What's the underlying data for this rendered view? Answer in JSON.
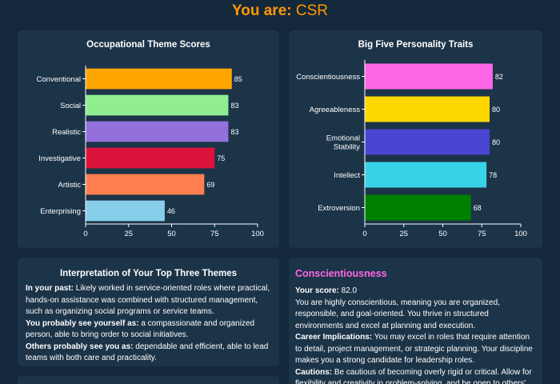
{
  "header": {
    "prefix": "You are:",
    "role": "CSR"
  },
  "theme_card": {
    "title": "Occupational Theme Scores"
  },
  "traits_card": {
    "title": "Big Five Personality Traits"
  },
  "chart_data": [
    {
      "type": "bar",
      "orientation": "horizontal",
      "title": "Occupational Theme Scores",
      "categories": [
        "Conventional",
        "Social",
        "Realistic",
        "Investigative",
        "Artistic",
        "Enterprising"
      ],
      "values": [
        85,
        83,
        83,
        75,
        69,
        46
      ],
      "colors": [
        "#ffa500",
        "#90ee90",
        "#9370db",
        "#dc143c",
        "#ff7f50",
        "#87ceeb"
      ],
      "xlim": [
        0,
        100
      ],
      "xticks": [
        0,
        25,
        50,
        75,
        100
      ],
      "grid": false
    },
    {
      "type": "bar",
      "orientation": "horizontal",
      "title": "Big Five Personality Traits",
      "categories": [
        "Conscientiousness",
        "Agreeableness",
        "Emotional Stability",
        "Intellect",
        "Extroversion"
      ],
      "values": [
        82,
        80,
        80,
        78,
        68
      ],
      "colors": [
        "#ff66e6",
        "#ffd700",
        "#4a45d0",
        "#38d3e8",
        "#008000"
      ],
      "xlim": [
        0,
        100
      ],
      "xticks": [
        0,
        25,
        50,
        75,
        100
      ],
      "grid": false
    }
  ],
  "interpretation": {
    "title": "Interpretation of Your Top Three Themes",
    "past_label": "In your past:",
    "past_text": "Likely worked in service-oriented roles where practical, hands-on assistance was combined with structured management, such as organizing social programs or service teams.",
    "self_label": "You probably see yourself as:",
    "self_text": "a compassionate and organized person, able to bring order to social initiatives.",
    "others_label": "Others probably see you as:",
    "others_text": "dependable and efficient, able to lead teams with both care and practicality."
  },
  "trait_detail": {
    "name": "Conscientiousness",
    "score_label": "Your score:",
    "score": "82.0",
    "description": "You are highly conscientious, meaning you are organized, responsible, and goal-oriented. You thrive in structured environments and excel at planning and execution.",
    "career_label": "Career Implications:",
    "career_text": "You may excel in roles that require attention to detail, project management, or strategic planning. Your discipline makes you a strong candidate for leadership roles.",
    "caution_label": "Cautions:",
    "caution_text": "Be cautious of becoming overly rigid or critical. Allow for flexibility and creativity in problem-solving, and be open to others'"
  }
}
